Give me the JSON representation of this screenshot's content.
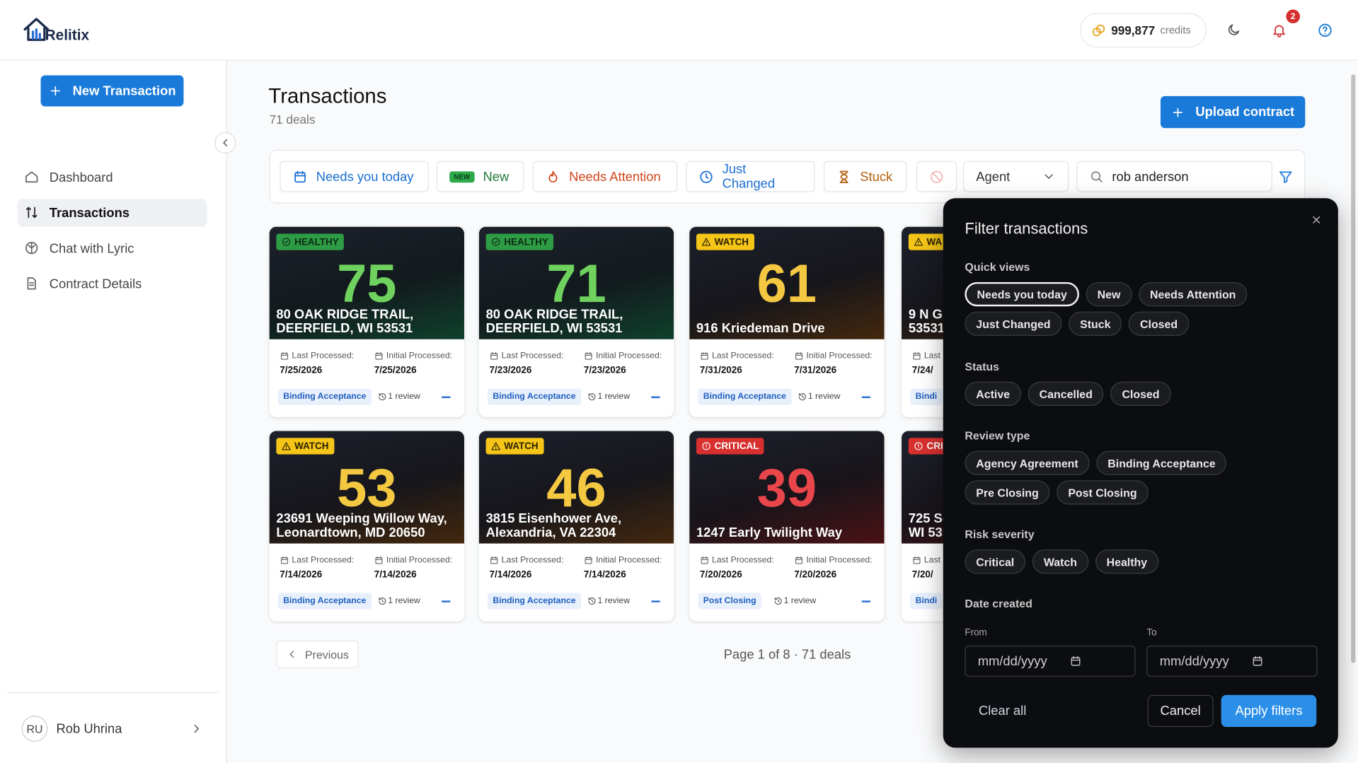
{
  "header": {
    "logo": "Relitix",
    "credits_value": "999,877",
    "credits_label": "credits",
    "notification_count": "2"
  },
  "sidebar": {
    "new_button": "New Transaction",
    "nav": [
      "Dashboard",
      "Transactions",
      "Chat with Lyric",
      "Contract Details"
    ],
    "active": 1,
    "user_initials": "RU",
    "user_name": "Rob Uhrina"
  },
  "page": {
    "title": "Transactions",
    "subtitle": "71 deals",
    "upload_button": "Upload contract"
  },
  "filters": {
    "chips": [
      "Needs you today",
      "New",
      "Needs Attention",
      "Just Changed",
      "Stuck"
    ],
    "new_badge": "NEW",
    "agent": "Agent",
    "search": "rob anderson"
  },
  "cards": [
    {
      "status": "HEALTHY",
      "level": "healthy",
      "score": 75,
      "address": [
        "80 OAK RIDGE TRAIL,",
        "DEERFIELD, WI 53531"
      ],
      "last_label": "Last Processed:",
      "last_date": "7/25/2026",
      "initial_label": "Initial Processed:",
      "initial_date": "7/25/2026",
      "tag": "Binding Acceptance",
      "reviews": "1 review"
    },
    {
      "status": "HEALTHY",
      "level": "healthy",
      "score": 71,
      "address": [
        "80 OAK RIDGE TRAIL,",
        "DEERFIELD, WI 53531"
      ],
      "last_label": "Last Processed:",
      "last_date": "7/23/2026",
      "initial_label": "Initial Processed:",
      "initial_date": "7/23/2026",
      "tag": "Binding Acceptance",
      "reviews": "1 review"
    },
    {
      "status": "WATCH",
      "level": "watch",
      "score": 61,
      "address": [
        "916 Kriedeman Drive"
      ],
      "last_label": "Last Processed:",
      "last_date": "7/31/2026",
      "initial_label": "Initial Processed:",
      "initial_date": "7/31/2026",
      "tag": "Binding Acceptance",
      "reviews": "1 review"
    },
    {
      "status": "WA",
      "level": "watch",
      "address": [
        "9 N G",
        "53531"
      ],
      "last_label": "Last",
      "last_date": "7/24/",
      "tag": "Bindi"
    },
    {
      "status": "WATCH",
      "level": "watch",
      "score": 53,
      "address": [
        "23691 Weeping Willow Way,",
        "Leonardtown, MD 20650"
      ],
      "last_label": "Last Processed:",
      "last_date": "7/14/2026",
      "initial_label": "Initial Processed:",
      "initial_date": "7/14/2026",
      "tag": "Binding Acceptance",
      "reviews": "1 review"
    },
    {
      "status": "WATCH",
      "level": "watch",
      "score": 46,
      "address": [
        "3815 Eisenhower Ave,",
        "Alexandria, VA 22304"
      ],
      "last_label": "Last Processed:",
      "last_date": "7/14/2026",
      "initial_label": "Initial Processed:",
      "initial_date": "7/14/2026",
      "tag": "Binding Acceptance",
      "reviews": "1 review"
    },
    {
      "status": "CRITICAL",
      "level": "critical",
      "score": 39,
      "address": [
        "1247 Early Twilight Way"
      ],
      "last_label": "Last Processed:",
      "last_date": "7/20/2026",
      "initial_label": "Initial Processed:",
      "initial_date": "7/20/2026",
      "tag": "Post Closing",
      "reviews": "1 review"
    },
    {
      "status": "CRI",
      "level": "critical",
      "address": [
        "725 Sc",
        "WI 535"
      ],
      "last_label": "Last",
      "last_date": "7/20/",
      "tag": "Bindi"
    }
  ],
  "pagination": {
    "previous": "Previous",
    "info": "Page 1 of 8 · 71 deals"
  },
  "filter_panel": {
    "title": "Filter transactions",
    "sections": [
      {
        "label": "Quick views",
        "options": [
          "Needs you today",
          "New",
          "Needs Attention",
          "Just Changed",
          "Stuck",
          "Closed"
        ]
      },
      {
        "label": "Status",
        "options": [
          "Active",
          "Cancelled",
          "Closed"
        ]
      },
      {
        "label": "Review type",
        "options": [
          "Agency Agreement",
          "Binding Acceptance",
          "Pre Closing",
          "Post Closing"
        ]
      },
      {
        "label": "Risk severity",
        "options": [
          "Critical",
          "Watch",
          "Healthy"
        ]
      }
    ],
    "date_label": "Date created",
    "from_label": "From",
    "to_label": "To",
    "from_placeholder": "mm/dd/yyyy",
    "to_placeholder": "mm/dd/yyyy",
    "clear": "Clear all",
    "cancel": "Cancel",
    "apply": "Apply filters"
  }
}
